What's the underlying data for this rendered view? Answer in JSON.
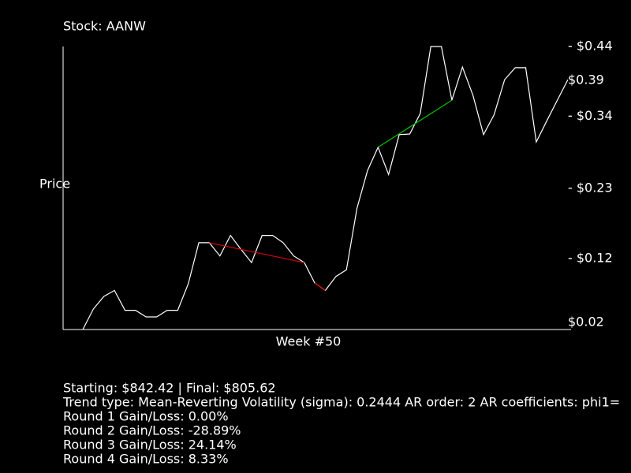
{
  "chart_data": {
    "type": "line",
    "title": "Stock: AANW",
    "ylabel": "Price",
    "xlabel": "Week #50",
    "ylim": [
      0.013,
      0.44
    ],
    "yticks": [
      {
        "value": 0.44,
        "label": "- $0.44"
      },
      {
        "value": 0.389,
        "label": "$0.39"
      },
      {
        "value": 0.335,
        "label": "- $0.34"
      },
      {
        "value": 0.226,
        "label": "- $0.23"
      },
      {
        "value": 0.12,
        "label": "- $0.12"
      },
      {
        "value": 0.024,
        "label": "$0.02"
      }
    ],
    "series": [
      {
        "color": "#ffffff",
        "values": [
          0.013,
          0.044,
          0.063,
          0.072,
          0.042,
          0.042,
          0.032,
          0.032,
          0.042,
          0.042,
          0.082,
          0.144,
          0.144,
          0.124,
          0.155,
          0.134,
          0.114,
          0.155,
          0.155,
          0.144,
          0.124,
          0.114,
          0.083,
          0.072,
          0.093,
          0.103,
          0.196,
          0.253,
          0.288,
          0.247,
          0.307,
          0.308,
          0.339,
          0.44,
          0.44,
          0.359,
          0.409,
          0.366,
          0.307,
          0.337,
          0.39,
          0.408,
          0.408,
          0.296,
          0.328,
          0.359,
          0.39
        ]
      },
      {
        "color": "#e00000",
        "x": [
          12,
          21
        ],
        "values": [
          0.144,
          0.114
        ]
      },
      {
        "color": "#e00000",
        "x": [
          22,
          23
        ],
        "values": [
          0.083,
          0.072
        ]
      },
      {
        "color": "#00c000",
        "x": [
          28,
          35
        ],
        "values": [
          0.288,
          0.359
        ]
      }
    ]
  },
  "info": {
    "lines": [
      "Starting: $842.42 | Final: $805.62",
      "Trend type: Mean-Reverting Volatility (sigma): 0.2444 AR order: 2 AR coefficients: phi1=",
      "Round 1 Gain/Loss: 0.00%",
      "Round 2 Gain/Loss: -28.89%",
      "Round 3 Gain/Loss: 24.14%",
      "Round 4 Gain/Loss: 8.33%"
    ]
  }
}
